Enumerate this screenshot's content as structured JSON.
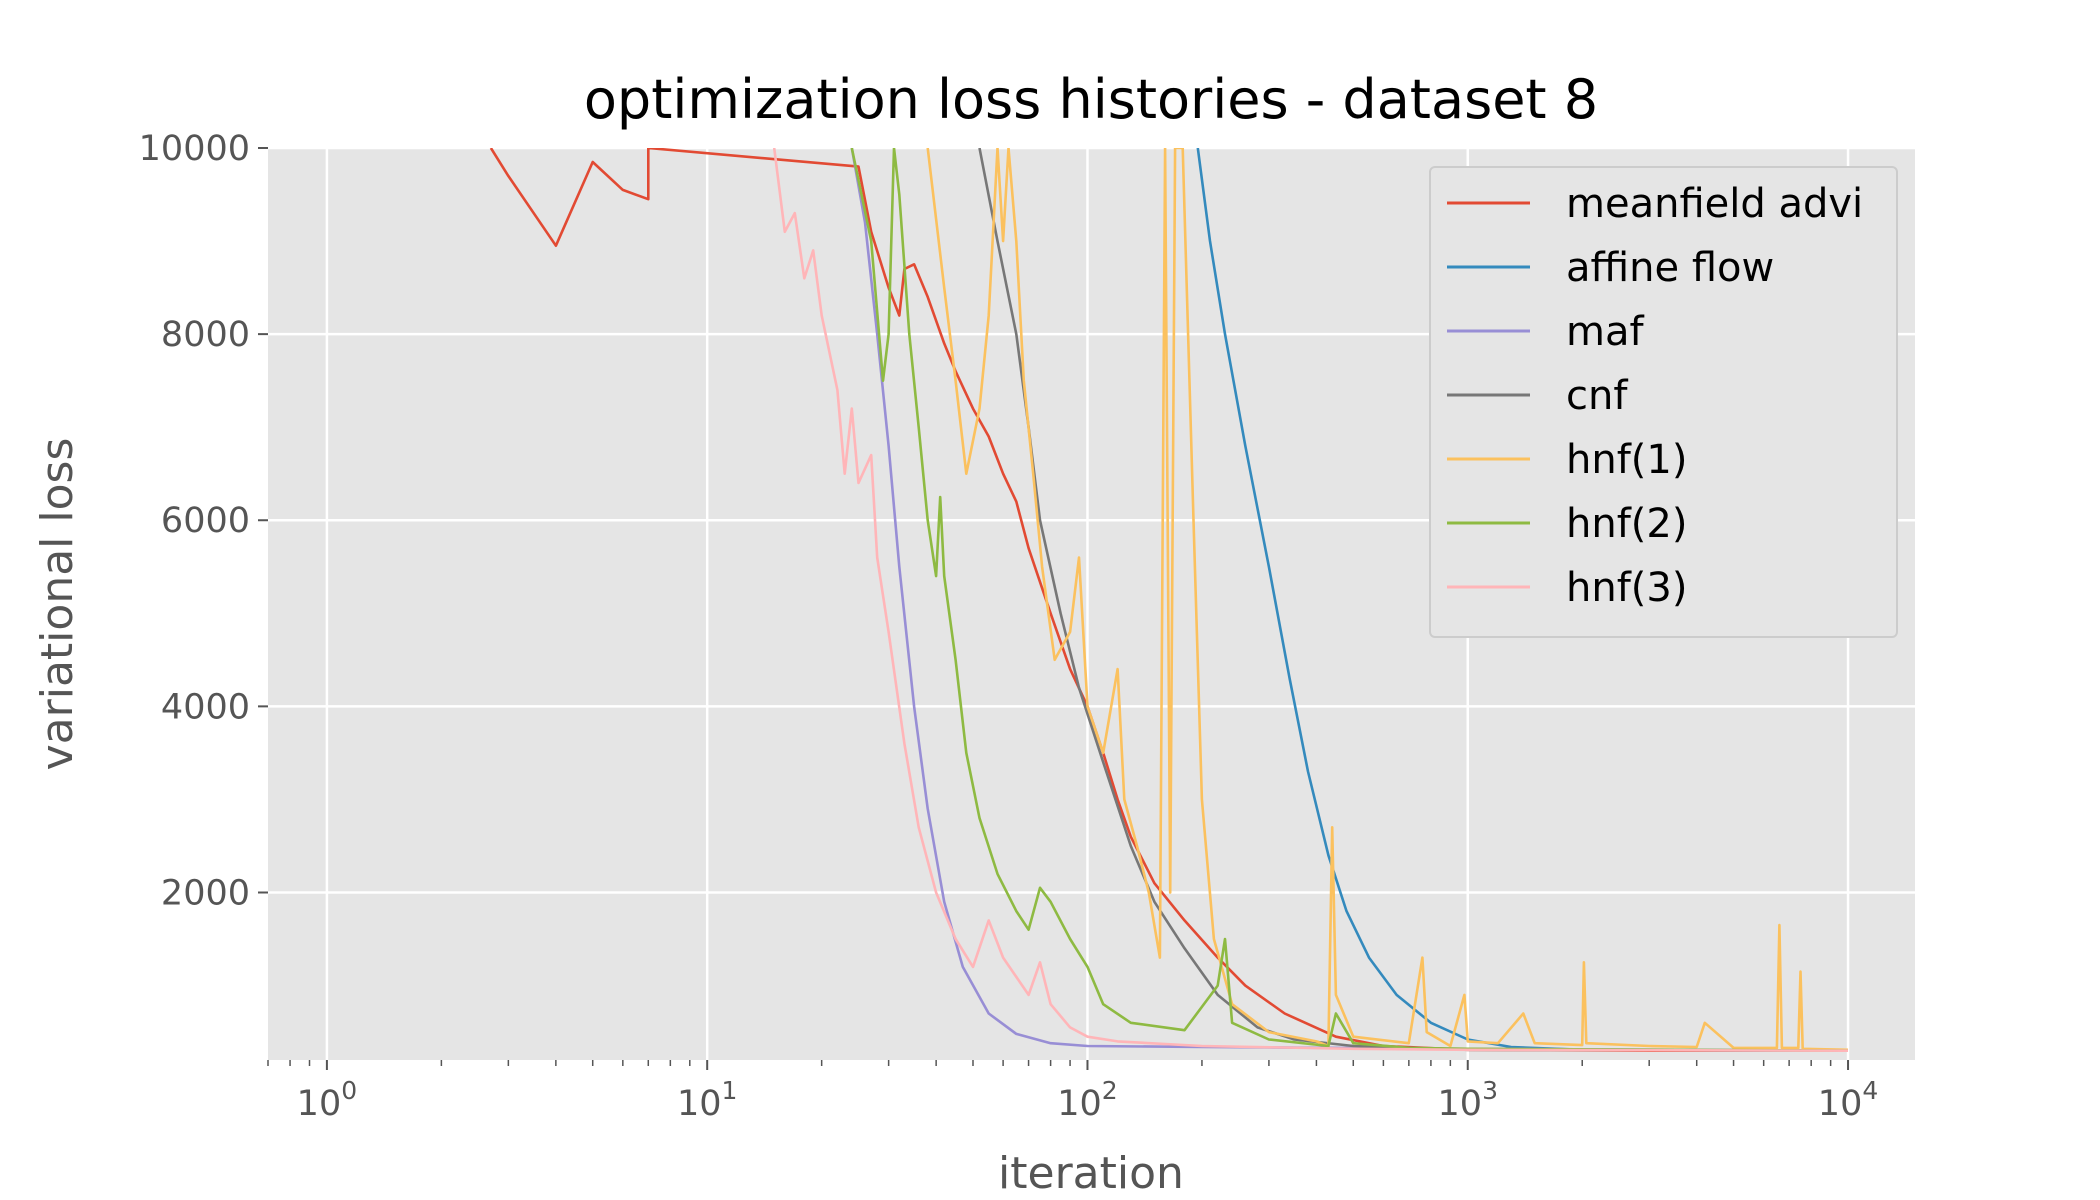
{
  "chart_data": {
    "type": "line",
    "title": "optimization loss histories - dataset 8",
    "xlabel": "iteration",
    "ylabel": "variational loss",
    "xscale": "log",
    "xlim": [
      0.7,
      15000
    ],
    "ylim": [
      200,
      10000
    ],
    "x_ticks": [
      {
        "value": 1,
        "base": "10",
        "exp": "0"
      },
      {
        "value": 10,
        "base": "10",
        "exp": "1"
      },
      {
        "value": 100,
        "base": "10",
        "exp": "2"
      },
      {
        "value": 1000,
        "base": "10",
        "exp": "3"
      },
      {
        "value": 10000,
        "base": "10",
        "exp": "4"
      }
    ],
    "y_ticks": [
      2000,
      4000,
      6000,
      8000,
      10000
    ],
    "grid": true,
    "legend_position": "top-right",
    "series": [
      {
        "name": "meanfield advi",
        "color": "#E24A33",
        "points": [
          [
            2.7,
            10000
          ],
          [
            3,
            9700
          ],
          [
            4,
            8950
          ],
          [
            5,
            9850
          ],
          [
            6,
            9550
          ],
          [
            7,
            9450
          ],
          [
            7,
            10000
          ],
          [
            25,
            9800
          ],
          [
            27,
            9100
          ],
          [
            30,
            8500
          ],
          [
            32,
            8200
          ],
          [
            33,
            8700
          ],
          [
            35,
            8750
          ],
          [
            38,
            8400
          ],
          [
            42,
            7900
          ],
          [
            45,
            7600
          ],
          [
            50,
            7200
          ],
          [
            55,
            6900
          ],
          [
            60,
            6500
          ],
          [
            65,
            6200
          ],
          [
            70,
            5700
          ],
          [
            80,
            5000
          ],
          [
            90,
            4400
          ],
          [
            100,
            4000
          ],
          [
            110,
            3500
          ],
          [
            120,
            3000
          ],
          [
            130,
            2600
          ],
          [
            150,
            2100
          ],
          [
            180,
            1700
          ],
          [
            220,
            1300
          ],
          [
            260,
            1000
          ],
          [
            330,
            700
          ],
          [
            450,
            450
          ],
          [
            600,
            350
          ],
          [
            1000,
            310
          ],
          [
            3000,
            300
          ],
          [
            10000,
            300
          ]
        ]
      },
      {
        "name": "affine flow",
        "color": "#348ABD",
        "points": [
          [
            195,
            10000
          ],
          [
            210,
            9000
          ],
          [
            230,
            8000
          ],
          [
            260,
            6800
          ],
          [
            300,
            5500
          ],
          [
            340,
            4300
          ],
          [
            380,
            3300
          ],
          [
            430,
            2400
          ],
          [
            480,
            1800
          ],
          [
            550,
            1300
          ],
          [
            650,
            900
          ],
          [
            800,
            600
          ],
          [
            1000,
            420
          ],
          [
            1300,
            340
          ],
          [
            2000,
            310
          ],
          [
            10000,
            300
          ]
        ]
      },
      {
        "name": "maf",
        "color": "#988ED5",
        "points": [
          [
            24,
            10000
          ],
          [
            26,
            9200
          ],
          [
            28,
            8000
          ],
          [
            30,
            6800
          ],
          [
            32,
            5500
          ],
          [
            35,
            4000
          ],
          [
            38,
            2900
          ],
          [
            42,
            1900
          ],
          [
            47,
            1200
          ],
          [
            55,
            700
          ],
          [
            65,
            480
          ],
          [
            80,
            380
          ],
          [
            100,
            350
          ],
          [
            200,
            340
          ],
          [
            1000,
            320
          ],
          [
            10000,
            300
          ]
        ]
      },
      {
        "name": "cnf",
        "color": "#777777",
        "points": [
          [
            52,
            10000
          ],
          [
            58,
            9000
          ],
          [
            65,
            8000
          ],
          [
            70,
            7000
          ],
          [
            75,
            6000
          ],
          [
            85,
            5000
          ],
          [
            95,
            4200
          ],
          [
            110,
            3400
          ],
          [
            130,
            2500
          ],
          [
            150,
            1900
          ],
          [
            180,
            1400
          ],
          [
            220,
            900
          ],
          [
            280,
            550
          ],
          [
            350,
            420
          ],
          [
            500,
            350
          ],
          [
            1000,
            310
          ],
          [
            10000,
            300
          ]
        ]
      },
      {
        "name": "hnf(1)",
        "color": "#FBC15E",
        "points": [
          [
            38,
            10000
          ],
          [
            42,
            8500
          ],
          [
            45,
            7500
          ],
          [
            48,
            6500
          ],
          [
            52,
            7200
          ],
          [
            55,
            8200
          ],
          [
            58,
            10000
          ],
          [
            60,
            9000
          ],
          [
            62,
            10000
          ],
          [
            65,
            9000
          ],
          [
            68,
            7500
          ],
          [
            72,
            6500
          ],
          [
            76,
            5500
          ],
          [
            82,
            4500
          ],
          [
            90,
            4800
          ],
          [
            95,
            5600
          ],
          [
            100,
            4000
          ],
          [
            110,
            3500
          ],
          [
            120,
            4400
          ],
          [
            125,
            3000
          ],
          [
            135,
            2500
          ],
          [
            145,
            2000
          ],
          [
            155,
            1300
          ],
          [
            160,
            10000
          ],
          [
            165,
            2000
          ],
          [
            170,
            10000
          ],
          [
            178,
            10000
          ],
          [
            190,
            6000
          ],
          [
            200,
            3000
          ],
          [
            215,
            1500
          ],
          [
            240,
            800
          ],
          [
            300,
            500
          ],
          [
            400,
            400
          ],
          [
            430,
            350
          ],
          [
            440,
            2700
          ],
          [
            450,
            900
          ],
          [
            500,
            450
          ],
          [
            700,
            380
          ],
          [
            760,
            1300
          ],
          [
            780,
            500
          ],
          [
            900,
            350
          ],
          [
            980,
            900
          ],
          [
            1000,
            400
          ],
          [
            1200,
            380
          ],
          [
            1400,
            700
          ],
          [
            1500,
            380
          ],
          [
            2000,
            360
          ],
          [
            2020,
            1250
          ],
          [
            2050,
            380
          ],
          [
            3000,
            350
          ],
          [
            4000,
            340
          ],
          [
            4200,
            600
          ],
          [
            5000,
            330
          ],
          [
            6500,
            330
          ],
          [
            6600,
            1650
          ],
          [
            6700,
            330
          ],
          [
            7400,
            330
          ],
          [
            7500,
            1150
          ],
          [
            7600,
            320
          ],
          [
            10000,
            310
          ]
        ]
      },
      {
        "name": "hnf(2)",
        "color": "#8EBA42",
        "points": [
          [
            24,
            10000
          ],
          [
            27,
            9000
          ],
          [
            29,
            7500
          ],
          [
            30,
            8000
          ],
          [
            31,
            10000
          ],
          [
            32,
            9500
          ],
          [
            34,
            8000
          ],
          [
            36,
            7000
          ],
          [
            38,
            6000
          ],
          [
            40,
            5400
          ],
          [
            41,
            6250
          ],
          [
            42,
            5400
          ],
          [
            45,
            4500
          ],
          [
            48,
            3500
          ],
          [
            52,
            2800
          ],
          [
            58,
            2200
          ],
          [
            65,
            1800
          ],
          [
            70,
            1600
          ],
          [
            75,
            2050
          ],
          [
            80,
            1900
          ],
          [
            90,
            1500
          ],
          [
            100,
            1200
          ],
          [
            110,
            800
          ],
          [
            130,
            600
          ],
          [
            180,
            520
          ],
          [
            220,
            1000
          ],
          [
            230,
            1500
          ],
          [
            240,
            600
          ],
          [
            300,
            420
          ],
          [
            430,
            350
          ],
          [
            450,
            700
          ],
          [
            500,
            380
          ],
          [
            700,
            330
          ],
          [
            1000,
            320
          ],
          [
            10000,
            300
          ]
        ]
      },
      {
        "name": "hnf(3)",
        "color": "#FFB5B8",
        "points": [
          [
            15,
            10000
          ],
          [
            16,
            9100
          ],
          [
            17,
            9300
          ],
          [
            18,
            8600
          ],
          [
            19,
            8900
          ],
          [
            20,
            8200
          ],
          [
            22,
            7400
          ],
          [
            23,
            6500
          ],
          [
            24,
            7200
          ],
          [
            25,
            6400
          ],
          [
            27,
            6700
          ],
          [
            28,
            5600
          ],
          [
            30,
            4800
          ],
          [
            33,
            3600
          ],
          [
            36,
            2700
          ],
          [
            40,
            2000
          ],
          [
            45,
            1500
          ],
          [
            50,
            1200
          ],
          [
            55,
            1700
          ],
          [
            60,
            1300
          ],
          [
            70,
            900
          ],
          [
            75,
            1250
          ],
          [
            80,
            800
          ],
          [
            90,
            550
          ],
          [
            100,
            450
          ],
          [
            120,
            400
          ],
          [
            200,
            350
          ],
          [
            500,
            320
          ],
          [
            1000,
            310
          ],
          [
            10000,
            300
          ]
        ]
      }
    ]
  }
}
